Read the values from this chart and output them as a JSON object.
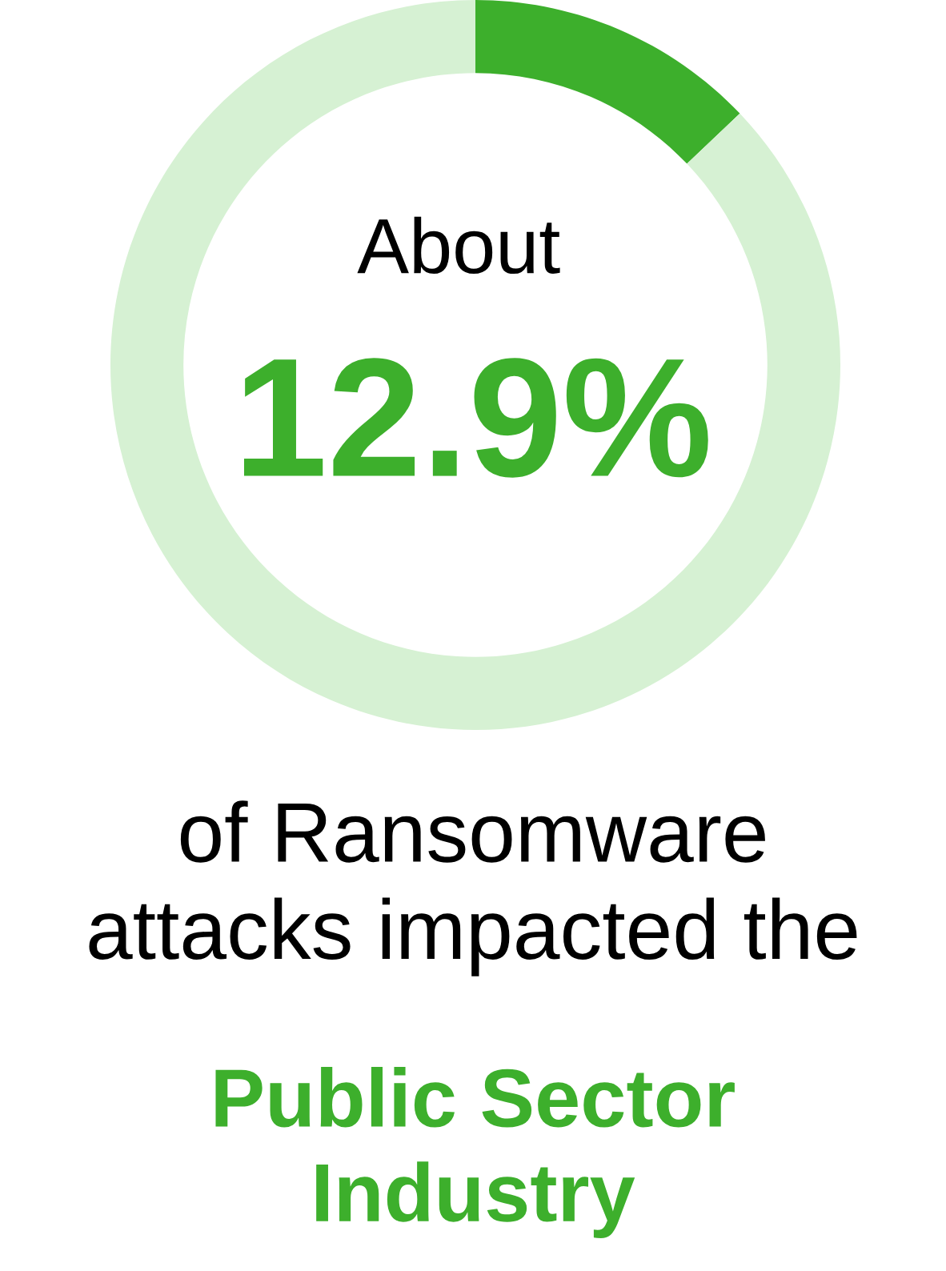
{
  "chart_data": {
    "type": "donut",
    "categories": [
      null,
      null
    ],
    "values": [
      12.9,
      87.1
    ],
    "colors": [
      "#3daf2c",
      "#d6f1d3"
    ],
    "annotations": [
      "About",
      "12.9%",
      "of Ransomware\nattacks impacted the",
      "Public Sector\nIndustry"
    ]
  }
}
